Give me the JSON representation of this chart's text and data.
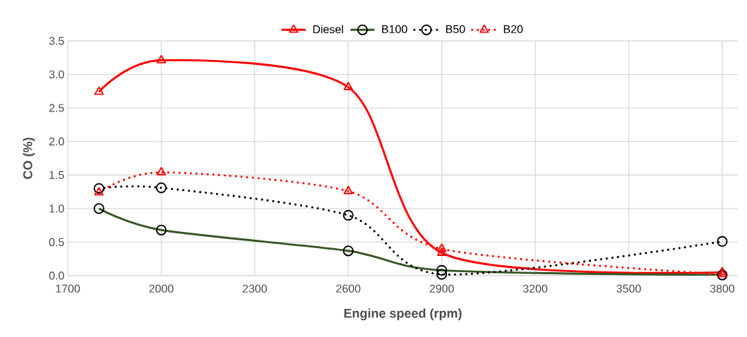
{
  "chart_data": {
    "type": "line",
    "xlabel": "Engine speed (rpm)",
    "ylabel": "CO (%)",
    "xlim": [
      1700,
      3850
    ],
    "xticks": [
      1700,
      2000,
      2300,
      2600,
      2900,
      3200,
      3500,
      3800
    ],
    "ylim": [
      0,
      3.5
    ],
    "yticks": [
      {
        "value": 0,
        "label": "0.0"
      },
      {
        "value": 0.5,
        "label": "0.5"
      },
      {
        "value": 1,
        "label": "1.0"
      },
      {
        "value": 1.5,
        "label": "1.5"
      },
      {
        "value": 2,
        "label": "2.0"
      },
      {
        "value": 2.5,
        "label": "2.5"
      },
      {
        "value": 3,
        "label": "3.0"
      },
      {
        "value": 3.5,
        "label": "3.5"
      }
    ],
    "grid": true,
    "legend": "top",
    "x": [
      1800,
      2000,
      2600,
      2900,
      3800
    ],
    "series": [
      {
        "name": "Diesel",
        "color": "#ff0000",
        "marker": "triangle",
        "line_style": "solid",
        "values": [
          2.74,
          3.21,
          2.81,
          0.34,
          0.05
        ]
      },
      {
        "name": "B100",
        "color": "#375623",
        "marker": "circle",
        "line_style": "solid",
        "values": [
          1.0,
          0.68,
          0.37,
          0.08,
          0.01
        ]
      },
      {
        "name": "B50",
        "color": "#000000",
        "marker": "circle",
        "line_style": "dotted",
        "values": [
          1.3,
          1.31,
          0.9,
          0.02,
          0.51
        ]
      },
      {
        "name": "B20",
        "color": "#ff0000",
        "marker": "triangle",
        "line_style": "dotted",
        "values": [
          1.24,
          1.54,
          1.26,
          0.4,
          0.02
        ]
      }
    ]
  }
}
